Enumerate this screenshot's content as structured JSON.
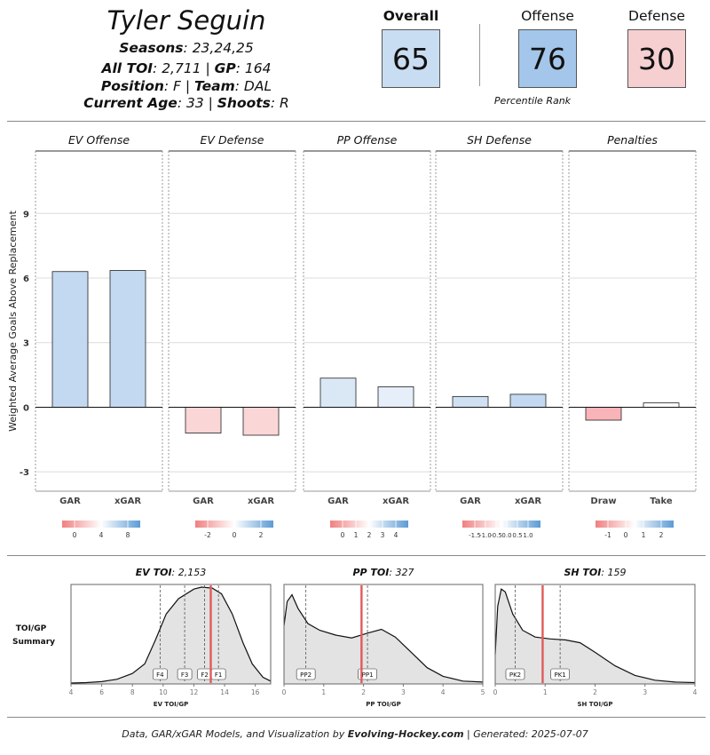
{
  "player": {
    "name": "Tyler Seguin",
    "seasons_label": "Seasons",
    "seasons": ": 23,24,25",
    "toi_label": "All TOI",
    "toi": ": 2,711 | ",
    "gp_label": "GP",
    "gp": ": 164",
    "position_label": "Position",
    "position": ": F | ",
    "team_label": "Team",
    "team": ": DAL",
    "age_label": "Current Age",
    "age": ": 33 | ",
    "shoots_label": "Shoots",
    "shoots": ": R"
  },
  "ranks": {
    "overall_label": "Overall",
    "overall": "65",
    "offense_label": "Offense",
    "offense": "76",
    "defense_label": "Defense",
    "defense": "30",
    "caption": "Percentile Rank",
    "colors": {
      "overall": "#c9ddf2",
      "offense": "#a3c6ea",
      "defense": "#f6cfd1"
    }
  },
  "chart_data": [
    {
      "type": "bar",
      "ylabel": "Weighted Average Goals Above Replacement",
      "ylim": [
        -3.9,
        11.9
      ],
      "yticks": [
        "-3",
        "0",
        "3",
        "6",
        "9"
      ],
      "grid": true,
      "panels": [
        {
          "title": "EV Offense",
          "categories": [
            "GAR",
            "xGAR"
          ],
          "values": [
            6.3,
            6.35
          ],
          "colors": [
            "#c3d9f1",
            "#c3d9f1"
          ],
          "scale": {
            "ticks": [
              "0",
              "4",
              "8"
            ]
          }
        },
        {
          "title": "EV Defense",
          "categories": [
            "GAR",
            "xGAR"
          ],
          "values": [
            -1.2,
            -1.3
          ],
          "colors": [
            "#fbd6d7",
            "#fbd6d7"
          ],
          "scale": {
            "ticks": [
              "-2",
              "0",
              "2"
            ]
          }
        },
        {
          "title": "PP Offense",
          "categories": [
            "GAR",
            "xGAR"
          ],
          "values": [
            1.35,
            0.95
          ],
          "colors": [
            "#dae8f6",
            "#e6eef9"
          ],
          "scale": {
            "ticks": [
              "0",
              "1",
              "2",
              "3",
              "4"
            ]
          }
        },
        {
          "title": "SH Defense",
          "categories": [
            "GAR",
            "xGAR"
          ],
          "values": [
            0.5,
            0.6
          ],
          "colors": [
            "#cfe0f3",
            "#c3d9f1"
          ],
          "scale": {
            "ticks": [
              "-1.5",
              "-1.0",
              "-0.5",
              "0.0",
              "0.5",
              "1.0"
            ]
          }
        },
        {
          "title": "Penalties",
          "categories": [
            "Draw",
            "Take"
          ],
          "values": [
            -0.6,
            0.2
          ],
          "colors": [
            "#f8b4b8",
            "#ffffff"
          ],
          "scale": {
            "ticks": [
              "-1",
              "0",
              "1",
              "2"
            ]
          }
        }
      ]
    },
    {
      "type": "area",
      "summary_label_1": "TOI/GP",
      "summary_label_2": "Summary",
      "panels": [
        {
          "title_label": "EV TOI",
          "title_value": ": 2,153",
          "xlabel": "EV TOI/GP",
          "xlim": [
            4,
            17
          ],
          "xticks": [
            "4",
            "6",
            "8",
            "10",
            "12",
            "14",
            "16"
          ],
          "player_value": 13.1,
          "lines": [
            {
              "label": "F4",
              "x": 9.8
            },
            {
              "label": "F3",
              "x": 11.4
            },
            {
              "label": "F2",
              "x": 12.7
            },
            {
              "label": "F1",
              "x": 13.6
            }
          ],
          "density": [
            [
              4,
              0
            ],
            [
              5,
              0.005
            ],
            [
              6,
              0.015
            ],
            [
              7,
              0.04
            ],
            [
              8,
              0.1
            ],
            [
              8.8,
              0.2
            ],
            [
              9.5,
              0.45
            ],
            [
              10.2,
              0.72
            ],
            [
              11,
              0.88
            ],
            [
              12,
              0.98
            ],
            [
              12.5,
              1.0
            ],
            [
              13.2,
              0.99
            ],
            [
              13.8,
              0.93
            ],
            [
              14.5,
              0.72
            ],
            [
              15.2,
              0.42
            ],
            [
              15.8,
              0.2
            ],
            [
              16.5,
              0.06
            ],
            [
              17,
              0.02
            ]
          ]
        },
        {
          "title_label": "PP TOI",
          "title_value": ": 327",
          "xlabel": "PP TOI/GP",
          "xlim": [
            0,
            5
          ],
          "xticks": [
            "0",
            "1",
            "2",
            "3",
            "4",
            "5"
          ],
          "player_value": 1.95,
          "lines": [
            {
              "label": "PP2",
              "x": 0.55
            },
            {
              "label": "PP1",
              "x": 2.1
            }
          ],
          "density": [
            [
              0,
              0.6
            ],
            [
              0.08,
              0.85
            ],
            [
              0.2,
              0.92
            ],
            [
              0.35,
              0.78
            ],
            [
              0.6,
              0.62
            ],
            [
              0.9,
              0.55
            ],
            [
              1.3,
              0.5
            ],
            [
              1.7,
              0.47
            ],
            [
              2.1,
              0.52
            ],
            [
              2.45,
              0.56
            ],
            [
              2.8,
              0.48
            ],
            [
              3.2,
              0.32
            ],
            [
              3.6,
              0.16
            ],
            [
              4,
              0.07
            ],
            [
              4.5,
              0.02
            ],
            [
              5,
              0.01
            ]
          ]
        },
        {
          "title_label": "SH TOI",
          "title_value": ": 159",
          "xlabel": "SH TOI/GP",
          "xlim": [
            0,
            4
          ],
          "xticks": [
            "0",
            "1",
            "2",
            "3",
            "4"
          ],
          "player_value": 0.95,
          "lines": [
            {
              "label": "PK2",
              "x": 0.4
            },
            {
              "label": "PK1",
              "x": 1.3
            }
          ],
          "density": [
            [
              0,
              0.3
            ],
            [
              0.05,
              0.8
            ],
            [
              0.12,
              0.98
            ],
            [
              0.2,
              0.95
            ],
            [
              0.35,
              0.72
            ],
            [
              0.55,
              0.55
            ],
            [
              0.8,
              0.48
            ],
            [
              1.1,
              0.46
            ],
            [
              1.4,
              0.45
            ],
            [
              1.7,
              0.42
            ],
            [
              2,
              0.32
            ],
            [
              2.4,
              0.18
            ],
            [
              2.8,
              0.08
            ],
            [
              3.2,
              0.03
            ],
            [
              3.6,
              0.01
            ],
            [
              4,
              0.005
            ]
          ]
        }
      ]
    }
  ],
  "footer": {
    "prefix": "Data, GAR/xGAR Models, and Visualization by ",
    "site": "Evolving-Hockey.com",
    "suffix": " | Generated: 2025-07-07"
  }
}
